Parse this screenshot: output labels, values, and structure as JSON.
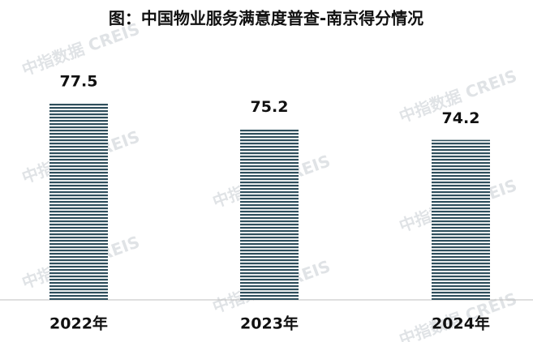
{
  "chart_data": {
    "type": "bar",
    "title": "图：中国物业服务满意度普查-南京得分情况",
    "categories": [
      "2022年",
      "2023年",
      "2024年"
    ],
    "values": [
      77.5,
      75.2,
      74.2
    ],
    "color": "#2e4e5c",
    "ylim": [
      60,
      80
    ],
    "watermark": "中指数据 CREIS"
  }
}
